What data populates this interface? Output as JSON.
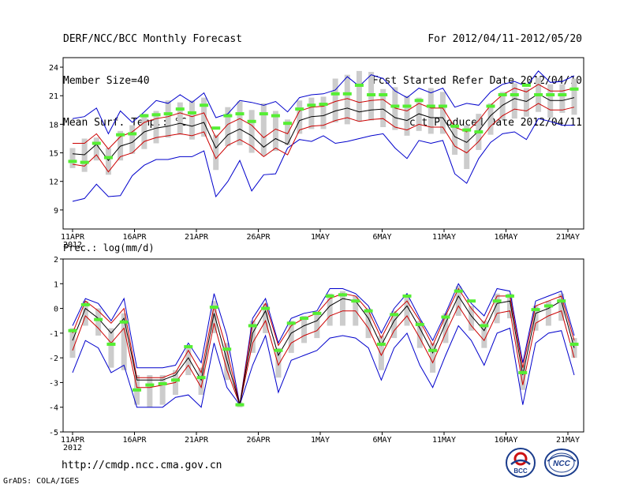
{
  "header": {
    "title": "DERF/NCC/BCC Monthly Forecast",
    "member_size": "Member Size=40",
    "variable": "Mean Surf. Temp.: °C",
    "period": "For 2012/04/11-2012/05/20",
    "refer_date": "Fcst Started Refer Date 2012/04/10",
    "produced_date": "Fcst Produced Date 2012/04/11"
  },
  "footer": {
    "url": "http://cmdp.ncc.cma.gov.cn",
    "credit": "GrADS: COLA/IGES",
    "logo_bcc": "BCC",
    "logo_ncc": "NCC"
  },
  "colors": {
    "max_min": "#0000cc",
    "spread": "#cc0000",
    "mean": "#000000",
    "obs_bar": "#55ee33",
    "box": "#cccccc"
  },
  "chart_data": [
    {
      "type": "line",
      "title": "Mean Surf. Temp.: °C",
      "x_start": "2012-04-11",
      "days": 40,
      "xticks": [
        {
          "day": 0,
          "label": "11APR"
        },
        {
          "day": 5,
          "label": "16APR"
        },
        {
          "day": 10,
          "label": "21APR"
        },
        {
          "day": 15,
          "label": "26APR"
        },
        {
          "day": 20,
          "label": "1MAY"
        },
        {
          "day": 25,
          "label": "6MAY"
        },
        {
          "day": 30,
          "label": "11MAY"
        },
        {
          "day": 35,
          "label": "16MAY"
        },
        {
          "day": 40,
          "label": "21MAY"
        }
      ],
      "year_label": "2012",
      "ylim": [
        7,
        25
      ],
      "yticks": [
        9,
        12,
        15,
        18,
        21,
        24
      ],
      "series": {
        "mean": [
          14.9,
          14.8,
          15.9,
          14.2,
          15.7,
          16.1,
          17.2,
          17.6,
          17.8,
          18.1,
          17.8,
          18.2,
          15.5,
          16.9,
          17.5,
          16.8,
          15.6,
          16.5,
          15.9,
          18.4,
          18.8,
          18.9,
          19.4,
          19.7,
          19.3,
          19.5,
          19.6,
          18.7,
          18.4,
          19.1,
          18.7,
          18.7,
          16.7,
          16.1,
          17.3,
          18.9,
          20.0,
          20.7,
          20.4,
          21.2,
          20.5,
          20.5,
          20.8
        ],
        "upper": [
          16.0,
          16.0,
          17.0,
          15.4,
          16.7,
          17.2,
          18.2,
          18.6,
          18.8,
          19.2,
          18.8,
          19.2,
          16.6,
          18.0,
          18.6,
          17.9,
          16.6,
          17.5,
          17.0,
          19.4,
          19.8,
          19.9,
          20.4,
          20.7,
          20.3,
          20.5,
          20.6,
          19.7,
          19.4,
          20.2,
          19.7,
          19.7,
          17.7,
          17.2,
          18.4,
          20.0,
          21.1,
          21.8,
          21.4,
          22.2,
          21.5,
          21.5,
          21.8
        ],
        "lower": [
          13.8,
          13.6,
          14.8,
          13.0,
          14.6,
          15.0,
          16.2,
          16.6,
          16.8,
          17.0,
          16.8,
          17.2,
          14.4,
          15.8,
          16.4,
          15.7,
          14.6,
          15.5,
          14.8,
          17.4,
          17.8,
          17.9,
          18.4,
          18.7,
          18.3,
          18.5,
          18.6,
          17.7,
          17.4,
          18.0,
          17.7,
          17.7,
          15.7,
          15.0,
          16.2,
          17.8,
          18.9,
          19.6,
          19.4,
          20.2,
          19.5,
          19.5,
          19.8
        ],
        "max": [
          18.6,
          18.8,
          19.7,
          17.0,
          19.4,
          18.2,
          19.3,
          20.5,
          20.2,
          21.1,
          20.3,
          21.3,
          18.7,
          19.1,
          20.5,
          20.3,
          20.0,
          20.4,
          19.3,
          20.8,
          21.1,
          21.2,
          21.6,
          23.0,
          22.0,
          23.2,
          22.8,
          21.5,
          20.8,
          21.8,
          21.3,
          21.8,
          19.8,
          20.2,
          20.0,
          21.4,
          22.2,
          22.5,
          22.0,
          23.6,
          22.4,
          22.5,
          23.1
        ],
        "min": [
          9.9,
          10.2,
          11.7,
          10.4,
          10.5,
          12.6,
          13.7,
          14.3,
          14.3,
          14.6,
          14.6,
          15.2,
          10.4,
          12.0,
          14.2,
          11.0,
          12.7,
          12.8,
          15.5,
          16.4,
          16.2,
          16.8,
          16.0,
          16.2,
          16.5,
          16.8,
          17.0,
          15.5,
          14.4,
          16.3,
          16.0,
          16.3,
          12.8,
          11.8,
          14.4,
          16.1,
          17.0,
          17.2,
          16.4,
          18.6,
          18.3,
          17.9,
          17.9
        ],
        "box_hi": [
          15.5,
          16.5,
          16.6,
          15.5,
          17.3,
          17.9,
          19.1,
          19.4,
          20.5,
          20.3,
          20.5,
          20.8,
          16.9,
          19.8,
          20.4,
          19.5,
          20.2,
          19.4,
          18.5,
          20.5,
          20.8,
          20.9,
          22.8,
          23.2,
          23.6,
          23.5,
          21.7,
          21.9,
          21.0,
          20.8,
          21.8,
          21.4,
          17.9,
          17.9,
          19.1,
          20.2,
          21.4,
          22.3,
          21.8,
          22.9,
          22.2,
          22.2,
          22.8
        ],
        "box_lo": [
          13.4,
          13.0,
          14.2,
          12.7,
          14.2,
          14.9,
          15.4,
          16.0,
          16.6,
          16.9,
          16.4,
          16.7,
          13.2,
          15.7,
          15.8,
          15.0,
          14.7,
          15.2,
          15.8,
          17.0,
          17.5,
          17.5,
          18.2,
          18.0,
          18.3,
          18.4,
          17.7,
          17.4,
          16.8,
          17.3,
          17.0,
          17.0,
          14.8,
          13.3,
          15.3,
          16.9,
          18.5,
          18.6,
          18.8,
          19.3,
          18.7,
          19.2,
          19.0
        ],
        "obs": [
          14.1,
          14.0,
          16.0,
          14.5,
          16.9,
          17.0,
          18.9,
          19.0,
          19.1,
          19.6,
          19.2,
          20.0,
          17.6,
          18.9,
          19.1,
          18.3,
          19.1,
          18.9,
          18.1,
          19.6,
          20.0,
          20.1,
          21.2,
          21.2,
          22.1,
          21.1,
          21.1,
          19.9,
          19.9,
          20.5,
          19.9,
          19.9,
          17.8,
          17.4,
          17.2,
          19.9,
          21.1,
          21.1,
          22.1,
          21.1,
          21.1,
          21.1,
          21.7
        ]
      }
    },
    {
      "type": "line",
      "title": "Prec.: log(mm/d)",
      "x_start": "2012-04-11",
      "days": 40,
      "xticks": [
        {
          "day": 0,
          "label": "11APR"
        },
        {
          "day": 5,
          "label": "16APR"
        },
        {
          "day": 10,
          "label": "21APR"
        },
        {
          "day": 15,
          "label": "26APR"
        },
        {
          "day": 20,
          "label": "1MAY"
        },
        {
          "day": 25,
          "label": "6MAY"
        },
        {
          "day": 30,
          "label": "11MAY"
        },
        {
          "day": 35,
          "label": "16MAY"
        },
        {
          "day": 40,
          "label": "21MAY"
        }
      ],
      "year_label": "2012",
      "ylim": [
        -5,
        2
      ],
      "yticks": [
        -5,
        -4,
        -3,
        -2,
        -1,
        0,
        1,
        2
      ],
      "series": {
        "mean": [
          -1.3,
          0.0,
          -0.4,
          -1.0,
          -0.4,
          -2.9,
          -2.9,
          -2.9,
          -2.7,
          -2.0,
          -2.9,
          -0.2,
          -2.1,
          -3.9,
          -1.0,
          -0.1,
          -1.9,
          -1.0,
          -0.7,
          -0.5,
          0.1,
          0.4,
          0.3,
          -0.4,
          -1.5,
          -0.5,
          0.1,
          -0.8,
          -1.8,
          -0.6,
          0.5,
          -0.3,
          -0.9,
          0.2,
          0.3,
          -2.7,
          -0.2,
          0.0,
          0.3,
          -1.6
        ],
        "upper": [
          -1.0,
          0.3,
          -0.1,
          -0.6,
          0.0,
          -2.8,
          -2.8,
          -2.8,
          -2.6,
          -1.7,
          -2.6,
          0.1,
          -1.7,
          -3.9,
          -0.6,
          0.2,
          -1.5,
          -0.7,
          -0.4,
          -0.2,
          0.4,
          0.6,
          0.5,
          -0.1,
          -1.2,
          -0.2,
          0.3,
          -0.5,
          -1.5,
          -0.3,
          0.8,
          0.0,
          -0.6,
          0.5,
          0.5,
          -2.4,
          0.1,
          0.3,
          0.5,
          -1.3
        ],
        "lower": [
          -1.7,
          -0.3,
          -0.8,
          -1.4,
          -0.8,
          -3.2,
          -3.2,
          -3.1,
          -3.0,
          -2.3,
          -3.2,
          -0.6,
          -2.5,
          -3.9,
          -1.4,
          -0.5,
          -2.3,
          -1.4,
          -1.1,
          -0.9,
          -0.3,
          -0.1,
          -0.1,
          -0.8,
          -1.9,
          -0.9,
          -0.3,
          -1.2,
          -2.2,
          -1.0,
          0.1,
          -0.7,
          -1.3,
          -0.2,
          -0.1,
          -3.1,
          -0.6,
          -0.3,
          -0.1,
          -2.0
        ],
        "max": [
          -0.7,
          0.4,
          0.2,
          -0.5,
          0.4,
          -2.4,
          -2.4,
          -2.4,
          -2.3,
          -1.4,
          -2.2,
          0.6,
          -1.1,
          -3.9,
          -0.4,
          0.4,
          -1.4,
          -0.4,
          -0.2,
          -0.1,
          0.8,
          0.8,
          0.6,
          0.1,
          -1.0,
          0.0,
          0.6,
          -0.4,
          -1.3,
          -0.2,
          1.0,
          0.2,
          -0.3,
          0.8,
          0.7,
          -2.2,
          0.3,
          0.5,
          0.7,
          -1.1
        ],
        "min": [
          -2.6,
          -1.3,
          -1.6,
          -2.6,
          -2.3,
          -4.0,
          -4.0,
          -4.0,
          -3.6,
          -3.5,
          -4.0,
          -1.4,
          -3.2,
          -3.9,
          -2.3,
          -1.1,
          -3.4,
          -2.1,
          -1.9,
          -1.7,
          -1.2,
          -1.1,
          -1.2,
          -1.6,
          -2.9,
          -1.6,
          -1.0,
          -2.3,
          -3.2,
          -1.9,
          -0.7,
          -1.3,
          -2.3,
          -1.0,
          -0.8,
          -3.9,
          -1.4,
          -1.0,
          -0.9,
          -2.7
        ],
        "box_hi": [
          -0.8,
          0.3,
          0.0,
          -0.8,
          -0.2,
          -2.7,
          -2.7,
          -2.7,
          -2.5,
          -1.5,
          -2.4,
          0.3,
          -1.4,
          -3.8,
          -0.5,
          0.2,
          -1.6,
          -0.5,
          -0.3,
          -0.2,
          0.6,
          0.7,
          0.5,
          0.0,
          -1.1,
          -0.1,
          0.5,
          -0.5,
          -1.4,
          -0.2,
          0.9,
          0.1,
          -0.5,
          0.6,
          0.6,
          -2.3,
          0.1,
          0.3,
          0.6,
          -1.2
        ],
        "box_lo": [
          -2.0,
          -0.7,
          -1.1,
          -2.4,
          -2.5,
          -3.9,
          -4.0,
          -3.9,
          -3.5,
          -2.7,
          -3.5,
          -1.0,
          -2.9,
          -4.0,
          -1.8,
          -1.0,
          -2.8,
          -1.8,
          -1.4,
          -1.2,
          -0.7,
          -0.7,
          -0.7,
          -1.2,
          -2.5,
          -1.2,
          -0.7,
          -1.6,
          -2.6,
          -1.4,
          -0.3,
          -0.9,
          -1.6,
          -0.6,
          -0.4,
          -3.3,
          -0.9,
          -0.7,
          -0.5,
          -2.0
        ],
        "obs": [
          -0.9,
          0.15,
          -0.45,
          -1.45,
          -0.55,
          -3.3,
          -3.1,
          -3.05,
          -2.9,
          -1.55,
          -2.8,
          0.05,
          -1.65,
          -3.9,
          -0.7,
          0.0,
          -1.7,
          -0.6,
          -0.4,
          -0.2,
          0.5,
          0.55,
          0.3,
          -0.1,
          -1.45,
          -0.25,
          0.5,
          -0.65,
          -1.7,
          -0.35,
          0.7,
          0.3,
          -0.7,
          0.3,
          0.5,
          -2.6,
          -0.05,
          0.1,
          0.3,
          -1.45
        ]
      }
    }
  ]
}
